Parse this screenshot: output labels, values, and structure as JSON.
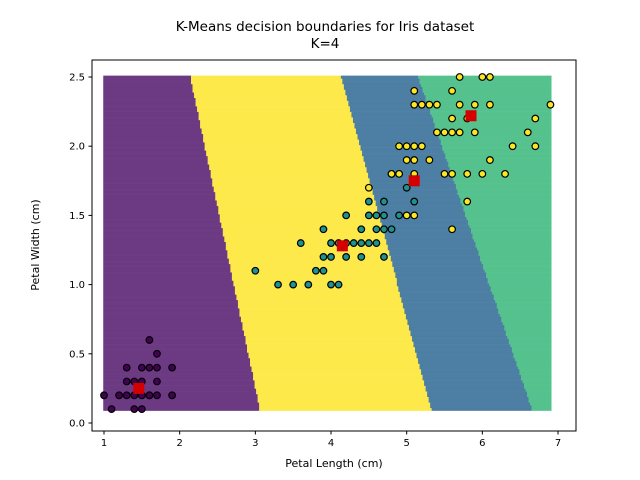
{
  "chart_data": {
    "type": "scatter",
    "title": "K-Means decision boundaries for Iris dataset",
    "subtitle": "K=4",
    "xlabel": "Petal Length (cm)",
    "ylabel": "Petal Width (cm)",
    "xlim": [
      0.7,
      7.23
    ],
    "ylim": [
      -0.03,
      2.63
    ],
    "xticks": [
      "1",
      "2",
      "3",
      "4",
      "5",
      "6",
      "7"
    ],
    "yticks": [
      "0.0",
      "0.5",
      "1.0",
      "1.5",
      "2.0",
      "2.5"
    ],
    "grid": false,
    "legend": "none",
    "mesh": {
      "x_range": [
        1.0,
        6.9
      ],
      "y_range": [
        0.1,
        2.5
      ],
      "step": 0.02
    },
    "region_colors": [
      "#6c3a83",
      "#4c7fa3",
      "#55c28e",
      "#fde94a"
    ],
    "centroid_color": "#d40000",
    "centroids": [
      {
        "x": 1.46,
        "y": 0.25,
        "region": 0
      },
      {
        "x": 5.1,
        "y": 1.75,
        "region": 1
      },
      {
        "x": 5.85,
        "y": 2.22,
        "region": 2
      },
      {
        "x": 4.15,
        "y": 1.28,
        "region": 3
      }
    ],
    "series": [
      {
        "color": "#440154",
        "points": [
          [
            1.4,
            0.2
          ],
          [
            1.3,
            0.2
          ],
          [
            1.5,
            0.2
          ],
          [
            1.7,
            0.4
          ],
          [
            1.4,
            0.3
          ],
          [
            1.5,
            0.1
          ],
          [
            1.6,
            0.2
          ],
          [
            1.4,
            0.1
          ],
          [
            1.1,
            0.1
          ],
          [
            1.2,
            0.2
          ],
          [
            1.5,
            0.4
          ],
          [
            1.3,
            0.4
          ],
          [
            1.7,
            0.3
          ],
          [
            1.5,
            0.3
          ],
          [
            1.7,
            0.2
          ],
          [
            1.0,
            0.2
          ],
          [
            1.7,
            0.5
          ],
          [
            1.9,
            0.2
          ],
          [
            1.6,
            0.4
          ],
          [
            1.3,
            0.3
          ],
          [
            1.6,
            0.6
          ],
          [
            1.9,
            0.4
          ],
          [
            1.6,
            0.2
          ]
        ]
      },
      {
        "color": "#21918c",
        "points": [
          [
            4.7,
            1.4
          ],
          [
            4.5,
            1.5
          ],
          [
            4.9,
            1.5
          ],
          [
            4.0,
            1.3
          ],
          [
            4.6,
            1.5
          ],
          [
            4.5,
            1.3
          ],
          [
            4.7,
            1.6
          ],
          [
            3.3,
            1.0
          ],
          [
            4.6,
            1.3
          ],
          [
            3.9,
            1.4
          ],
          [
            3.5,
            1.0
          ],
          [
            4.2,
            1.5
          ],
          [
            4.0,
            1.0
          ],
          [
            3.6,
            1.3
          ],
          [
            4.4,
            1.4
          ],
          [
            4.1,
            1.0
          ],
          [
            3.9,
            1.1
          ],
          [
            4.8,
            1.8
          ],
          [
            4.7,
            1.2
          ],
          [
            4.3,
            1.3
          ],
          [
            4.8,
            1.4
          ],
          [
            5.0,
            1.7
          ],
          [
            3.8,
            1.1
          ],
          [
            3.7,
            1.0
          ],
          [
            3.9,
            1.2
          ],
          [
            5.1,
            1.6
          ],
          [
            4.5,
            1.6
          ],
          [
            4.7,
            1.5
          ],
          [
            4.4,
            1.3
          ],
          [
            4.1,
            1.3
          ],
          [
            4.4,
            1.2
          ],
          [
            4.6,
            1.4
          ],
          [
            4.0,
            1.2
          ],
          [
            4.2,
            1.3
          ],
          [
            4.2,
            1.2
          ],
          [
            3.0,
            1.1
          ]
        ]
      },
      {
        "color": "#fde725",
        "points": [
          [
            6.0,
            2.5
          ],
          [
            5.1,
            1.9
          ],
          [
            5.9,
            2.1
          ],
          [
            5.6,
            1.8
          ],
          [
            5.8,
            2.2
          ],
          [
            6.6,
            2.1
          ],
          [
            4.5,
            1.7
          ],
          [
            6.3,
            1.8
          ],
          [
            5.8,
            1.8
          ],
          [
            6.1,
            2.5
          ],
          [
            5.1,
            2.0
          ],
          [
            5.3,
            1.9
          ],
          [
            5.5,
            2.1
          ],
          [
            5.0,
            2.0
          ],
          [
            5.1,
            2.4
          ],
          [
            5.3,
            2.3
          ],
          [
            5.5,
            1.8
          ],
          [
            6.7,
            2.2
          ],
          [
            6.9,
            2.3
          ],
          [
            5.0,
            1.5
          ],
          [
            5.7,
            2.3
          ],
          [
            4.9,
            2.0
          ],
          [
            6.7,
            2.0
          ],
          [
            4.9,
            1.8
          ],
          [
            5.7,
            2.1
          ],
          [
            6.0,
            1.8
          ],
          [
            4.8,
            1.8
          ],
          [
            5.6,
            2.1
          ],
          [
            5.8,
            1.6
          ],
          [
            6.1,
            1.9
          ],
          [
            6.4,
            2.0
          ],
          [
            5.6,
            2.2
          ],
          [
            5.1,
            1.5
          ],
          [
            5.6,
            1.4
          ],
          [
            6.1,
            2.3
          ],
          [
            5.6,
            2.4
          ],
          [
            5.4,
            2.1
          ],
          [
            5.1,
            2.3
          ],
          [
            5.9,
            2.3
          ],
          [
            5.7,
            2.5
          ],
          [
            5.2,
            2.3
          ],
          [
            5.0,
            1.9
          ],
          [
            5.2,
            2.0
          ],
          [
            5.4,
            2.3
          ],
          [
            5.1,
            1.8
          ]
        ]
      }
    ]
  }
}
